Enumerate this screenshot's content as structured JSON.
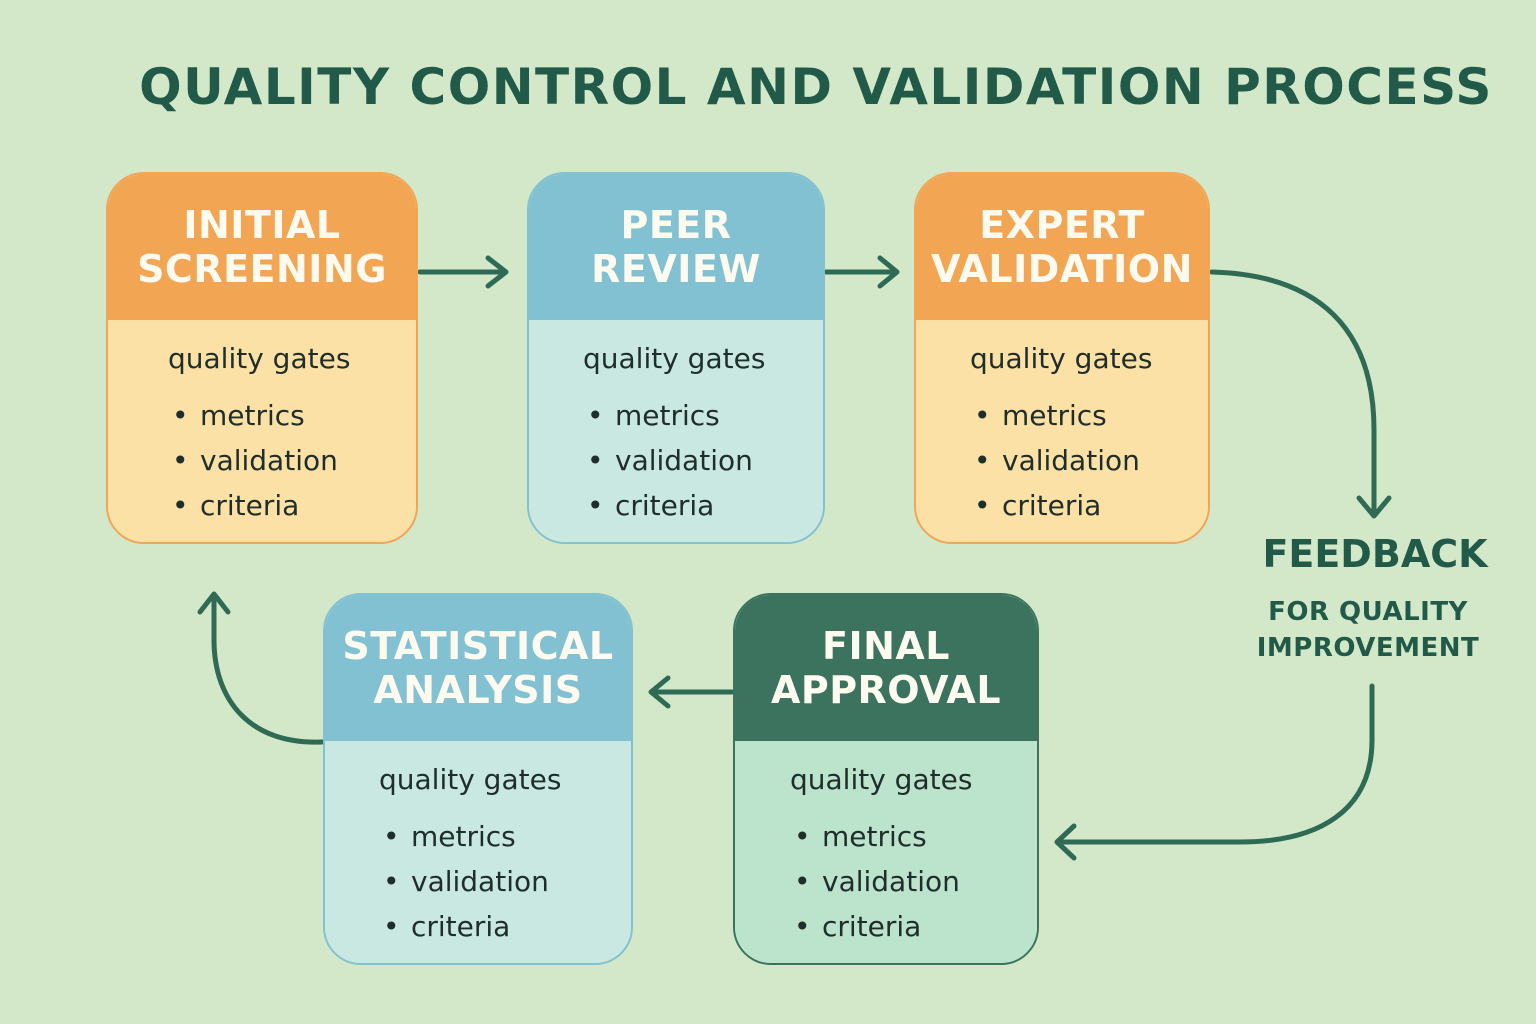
{
  "title": "QUALITY CONTROL AND VALIDATION PROCESS",
  "colors": {
    "background": "#d3e8c9",
    "text_dark": "#215a48",
    "orange_head": "#f2a553",
    "orange_body": "#fce1a6",
    "blue_head": "#82c1d1",
    "blue_body": "#c9e8e1",
    "green_head": "#3b735e",
    "green_body": "#bce3cc"
  },
  "stages": [
    {
      "id": "initial-screening",
      "title_line1": "INITIAL",
      "title_line2": "SCREENING",
      "heading": "quality gates",
      "items": [
        "metrics",
        "validation",
        "criteria"
      ]
    },
    {
      "id": "peer-review",
      "title_line1": "PEER",
      "title_line2": "REVIEW",
      "heading": "quality gates",
      "items": [
        "metrics",
        "validation",
        "criteria"
      ]
    },
    {
      "id": "expert-validation",
      "title_line1": "EXPERT",
      "title_line2": "VALIDATION",
      "heading": "quality gates",
      "items": [
        "metrics",
        "validation",
        "criteria"
      ]
    },
    {
      "id": "final-approval",
      "title_line1": "FINAL",
      "title_line2": "APPROVAL",
      "heading": "quality gates",
      "items": [
        "metrics",
        "validation",
        "criteria"
      ]
    },
    {
      "id": "statistical-analysis",
      "title_line1": "STATISTICAL",
      "title_line2": "ANALYSIS",
      "heading": "quality gates",
      "items": [
        "metrics",
        "validation",
        "criteria"
      ]
    }
  ],
  "feedback": {
    "title": "FEEDBACK",
    "sub_line1": "FOR QUALITY",
    "sub_line2": "IMPROVEMENT"
  },
  "bullet": "•"
}
